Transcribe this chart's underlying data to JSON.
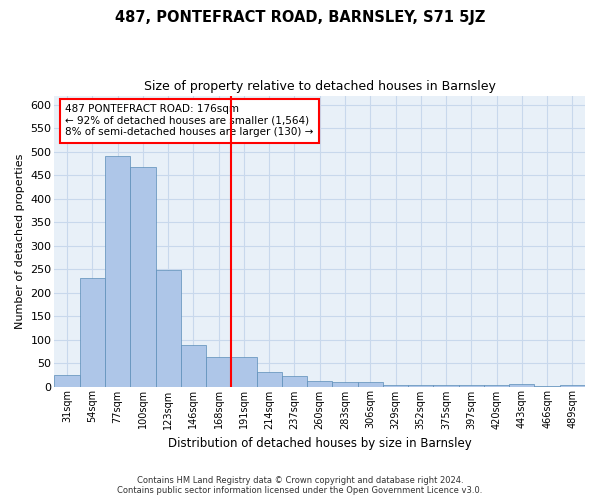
{
  "title": "487, PONTEFRACT ROAD, BARNSLEY, S71 5JZ",
  "subtitle": "Size of property relative to detached houses in Barnsley",
  "xlabel": "Distribution of detached houses by size in Barnsley",
  "ylabel": "Number of detached properties",
  "footer_line1": "Contains HM Land Registry data © Crown copyright and database right 2024.",
  "footer_line2": "Contains public sector information licensed under the Open Government Licence v3.0.",
  "categories": [
    "31sqm",
    "54sqm",
    "77sqm",
    "100sqm",
    "123sqm",
    "146sqm",
    "168sqm",
    "191sqm",
    "214sqm",
    "237sqm",
    "260sqm",
    "283sqm",
    "306sqm",
    "329sqm",
    "352sqm",
    "375sqm",
    "397sqm",
    "420sqm",
    "443sqm",
    "466sqm",
    "489sqm"
  ],
  "values": [
    25,
    232,
    492,
    468,
    248,
    88,
    62,
    62,
    30,
    22,
    12,
    10,
    10,
    4,
    3,
    3,
    3,
    3,
    6,
    1,
    4
  ],
  "bar_color": "#aec6e8",
  "bar_edge_color": "#5b8db8",
  "grid_color": "#c8d8ec",
  "background_color": "#e8f0f8",
  "vline_color": "red",
  "annotation_text": "487 PONTEFRACT ROAD: 176sqm\n← 92% of detached houses are smaller (1,564)\n8% of semi-detached houses are larger (130) →",
  "annotation_box_color": "white",
  "annotation_border_color": "red",
  "ylim": [
    0,
    620
  ],
  "yticks": [
    0,
    50,
    100,
    150,
    200,
    250,
    300,
    350,
    400,
    450,
    500,
    550,
    600
  ]
}
